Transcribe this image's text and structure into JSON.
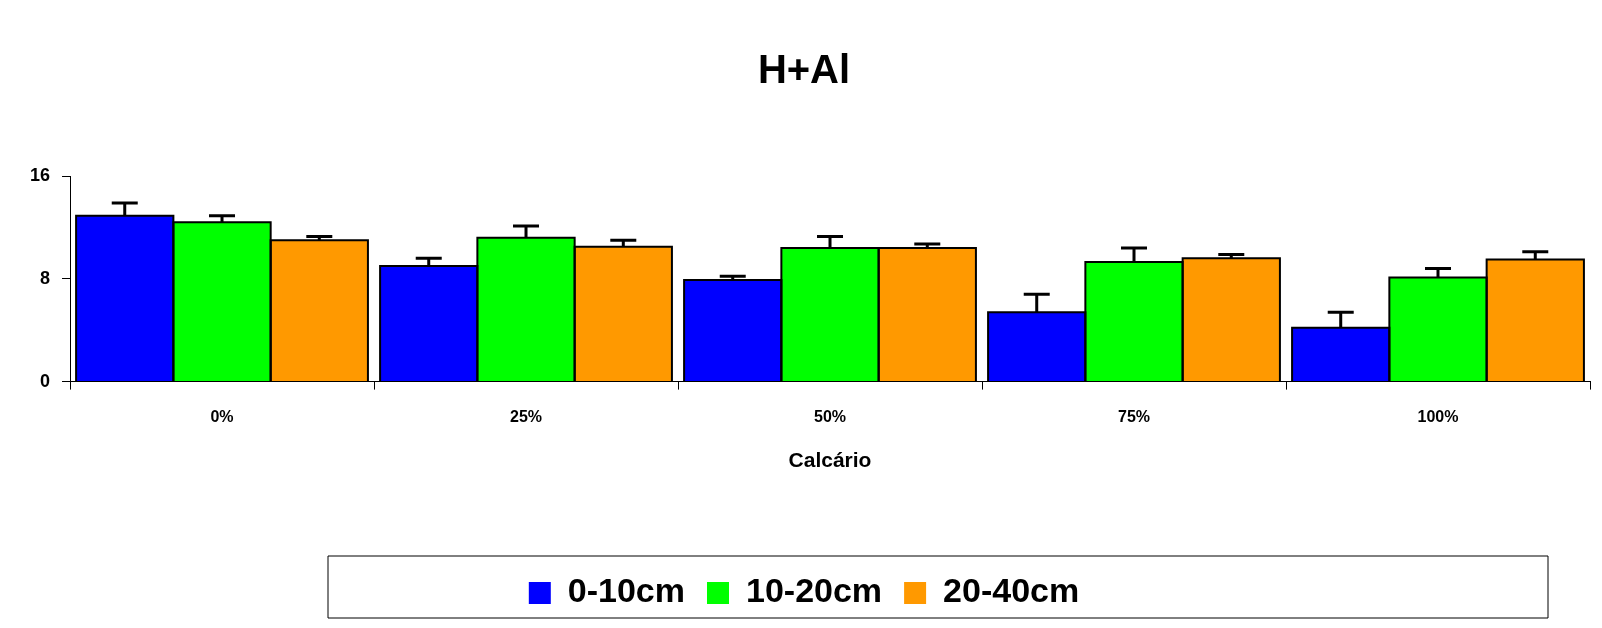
{
  "chart_data": {
    "type": "bar",
    "title": "H+Al",
    "xlabel": "Calcário",
    "categories": [
      "0%",
      "25%",
      "50%",
      "75%",
      "100%"
    ],
    "series": [
      {
        "name": "0-10cm",
        "color": "#0000ff",
        "values": [
          12.9,
          9.0,
          7.9,
          5.4,
          4.2
        ],
        "errors": [
          [
            12.9,
            13.9
          ],
          [
            9.0,
            9.6
          ],
          [
            7.9,
            8.2
          ],
          [
            5.4,
            6.8
          ],
          [
            4.2,
            5.4
          ]
        ]
      },
      {
        "name": "10-20cm",
        "color": "#00ff00",
        "values": [
          12.4,
          11.2,
          10.4,
          9.3,
          8.1
        ],
        "errors": [
          [
            12.4,
            12.9
          ],
          [
            11.2,
            12.1
          ],
          [
            10.4,
            11.3
          ],
          [
            9.3,
            10.4
          ],
          [
            8.1,
            8.8
          ]
        ]
      },
      {
        "name": "20-40cm",
        "color": "#ff9900",
        "values": [
          11.0,
          10.5,
          10.4,
          9.6,
          9.5
        ],
        "errors": [
          [
            11.0,
            11.3
          ],
          [
            10.5,
            11.0
          ],
          [
            10.4,
            10.7
          ],
          [
            9.6,
            9.9
          ],
          [
            9.5,
            10.1
          ]
        ]
      }
    ],
    "ylim": [
      0,
      16
    ],
    "yticks": [
      0,
      8,
      16
    ],
    "grid": false,
    "legend": "bottom"
  }
}
